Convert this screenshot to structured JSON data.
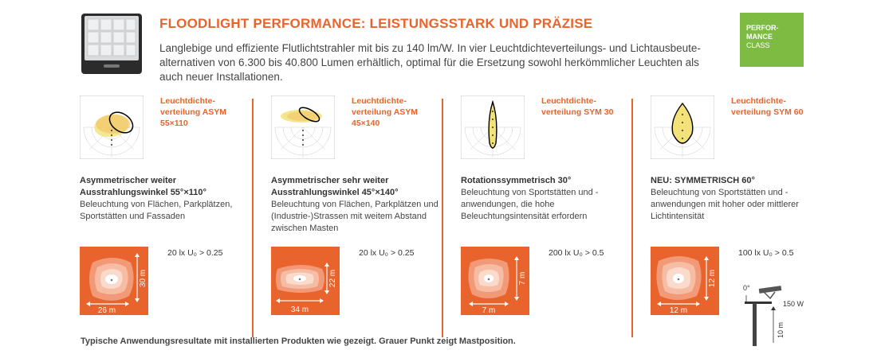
{
  "header": {
    "title": "FLOODLIGHT PERFORMANCE: LEISTUNGSSTARK UND PRÄZISE",
    "intro": "Langlebige und effiziente Flutlichtstrahler mit bis zu 140 lm/W. In vier Leuchtdichteverteilungs- und Lichtausbeute-alternativen von 6.300 bis 40.800 Lumen erhältlich, optimal für die Ersetzung sowohl herkömmlicher Leuchten als auch neuer Installationen.",
    "badge_line1": "PERFOR-",
    "badge_line2": "MANCE",
    "badge_line3": "CLASS"
  },
  "colors": {
    "accent": "#e8642c",
    "badge": "#7dbb42",
    "beam": "#f3e27a"
  },
  "columns": [
    {
      "label_line1": "Leuchtdichte-",
      "label_line2": "verteilung ASYM",
      "label_line3": "55×110",
      "heading_line1": "Asymmetrischer weiter",
      "heading_line2": "Ausstrahlungswinkel 55°×110°",
      "text": "Beleuchtung von Flächen, Parkplätzen, Sportstätten und Fassaden",
      "lux": "20 lx U₀ > 0.25",
      "dim_w": "26 m",
      "dim_h": "30 m"
    },
    {
      "label_line1": "Leuchtdichte-",
      "label_line2": "verteilung ASYM",
      "label_line3": "45×140",
      "heading_line1": "Asymmetrischer sehr weiter",
      "heading_line2": "Ausstrahlungswinkel 45°×140°",
      "text": "Beleuchtung von Flächen, Parkplätzen und (Industrie-)Strassen mit weitem Abstand zwischen Masten",
      "lux": "20 lx U₀ > 0.25",
      "dim_w": "34 m",
      "dim_h": "22 m"
    },
    {
      "label_line1": "Leuchtdichte-",
      "label_line2": "verteilung SYM 30",
      "label_line3": "",
      "heading_line1": "Rotationssymmetrisch 30°",
      "heading_line2": "",
      "text": "Beleuchtung von Sportstätten und -anwendungen, die hohe Beleuchtungsintensität erfordern",
      "lux": "200 lx U₀ > 0.5",
      "dim_w": "7 m",
      "dim_h": "7 m"
    },
    {
      "label_line1": "Leuchtdichte-",
      "label_line2": "verteilung SYM 60",
      "label_line3": "",
      "heading_line1": "NEU: SYMMETRISCH 60°",
      "heading_line2": "",
      "text": "Beleuchtung von Sportstätten und -anwendungen mit hoher oder mittlerer Lichtintensität",
      "lux": "100 lx U₀ > 0.5",
      "dim_w": "12 m",
      "dim_h": "12 m"
    }
  ],
  "pole": {
    "angle": "0°",
    "power": "150 W",
    "height": "10 m"
  },
  "footer": "Typische Anwendungsresultate mit installierten Produkten wie gezeigt. Grauer Punkt zeigt Mastposition."
}
